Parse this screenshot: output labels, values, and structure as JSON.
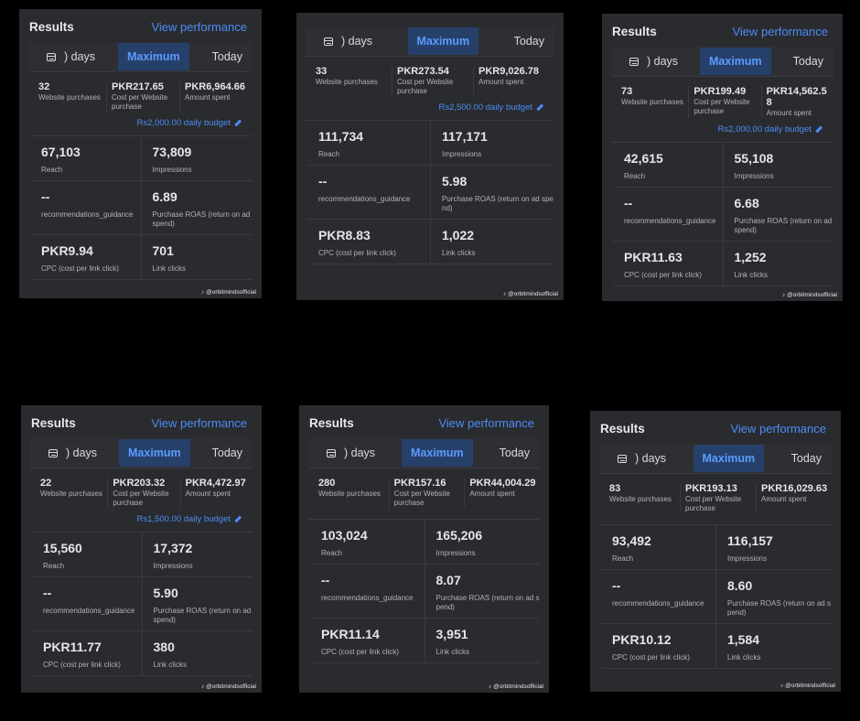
{
  "cards": [
    {
      "title": "Results",
      "view_label": "View performance",
      "tabs": {
        "days": ") days",
        "maximum": "Maximum",
        "today": "Today"
      },
      "summary": [
        {
          "value": "32",
          "label": "Website purchases"
        },
        {
          "value": "PKR217.65",
          "label": "Cost per Website purchase"
        },
        {
          "value": "PKR6,964.66",
          "label": "Amount spent"
        }
      ],
      "budget": "Rs2,000.00 daily budget",
      "metrics": [
        {
          "value": "67,103",
          "label": "Reach"
        },
        {
          "value": "73,809",
          "label": "Impressions"
        },
        {
          "value": "--",
          "label": "recommendations_guidance"
        },
        {
          "value": "6.89",
          "label": "Purchase ROAS (return on ad spend)"
        },
        {
          "value": "PKR9.94",
          "label": "CPC (cost per link click)"
        },
        {
          "value": "701",
          "label": "Link clicks"
        }
      ],
      "watermark": "@orbitmindsofficial"
    },
    {
      "title": "",
      "view_label": "",
      "tabs": {
        "days": ") days",
        "maximum": "Maximum",
        "today": "Today"
      },
      "summary": [
        {
          "value": "33",
          "label": "Website purchases"
        },
        {
          "value": "PKR273.54",
          "label": "Cost per Website purchase"
        },
        {
          "value": "PKR9,026.78",
          "label": "Amount spent"
        }
      ],
      "budget": "Rs2,500.00 daily budget",
      "metrics": [
        {
          "value": "111,734",
          "label": "Reach"
        },
        {
          "value": "117,171",
          "label": "Impressions"
        },
        {
          "value": "--",
          "label": "recommendations_guidance"
        },
        {
          "value": "5.98",
          "label": "Purchase ROAS (return on ad spend)"
        },
        {
          "value": "PKR8.83",
          "label": "CPC (cost per link click)"
        },
        {
          "value": "1,022",
          "label": "Link clicks"
        }
      ],
      "watermark": "@orbitmindsofficial"
    },
    {
      "title": "Results",
      "view_label": "View performance",
      "tabs": {
        "days": ") days",
        "maximum": "Maximum",
        "today": "Today"
      },
      "summary": [
        {
          "value": "73",
          "label": "Website purchases"
        },
        {
          "value": "PKR199.49",
          "label": "Cost per Website purchase"
        },
        {
          "value": "PKR14,562.58",
          "label": "Amount spent"
        }
      ],
      "budget": "Rs2,000.00 daily budget",
      "metrics": [
        {
          "value": "42,615",
          "label": "Reach"
        },
        {
          "value": "55,108",
          "label": "Impressions"
        },
        {
          "value": "--",
          "label": "recommendations_guidance"
        },
        {
          "value": "6.68",
          "label": "Purchase ROAS (return on ad spend)"
        },
        {
          "value": "PKR11.63",
          "label": "CPC (cost per link click)"
        },
        {
          "value": "1,252",
          "label": "Link clicks"
        }
      ],
      "watermark": "@orbitmindsofficial"
    },
    {
      "title": "Results",
      "view_label": "View performance",
      "tabs": {
        "days": ") days",
        "maximum": "Maximum",
        "today": "Today"
      },
      "summary": [
        {
          "value": "22",
          "label": "Website purchases"
        },
        {
          "value": "PKR203.32",
          "label": "Cost per Website purchase"
        },
        {
          "value": "PKR4,472.97",
          "label": "Amount spent"
        }
      ],
      "budget": "Rs1,500.00 daily budget",
      "metrics": [
        {
          "value": "15,560",
          "label": "Reach"
        },
        {
          "value": "17,372",
          "label": "Impressions"
        },
        {
          "value": "--",
          "label": "recommendations_guidance"
        },
        {
          "value": "5.90",
          "label": "Purchase ROAS (return on ad spend)"
        },
        {
          "value": "PKR11.77",
          "label": "CPC (cost per link click)"
        },
        {
          "value": "380",
          "label": "Link clicks"
        }
      ],
      "watermark": "@orbitmindsofficial"
    },
    {
      "title": "Results",
      "view_label": "View performance",
      "tabs": {
        "days": ") days",
        "maximum": "Maximum",
        "today": "Today"
      },
      "summary": [
        {
          "value": "280",
          "label": "Website purchases"
        },
        {
          "value": "PKR157.16",
          "label": "Cost per Website purchase"
        },
        {
          "value": "PKR44,004.29",
          "label": "Amount spent"
        }
      ],
      "budget": "",
      "metrics": [
        {
          "value": "103,024",
          "label": "Reach"
        },
        {
          "value": "165,206",
          "label": "Impressions"
        },
        {
          "value": "--",
          "label": "recommendations_guidance"
        },
        {
          "value": "8.07",
          "label": "Purchase ROAS (return on ad spend)"
        },
        {
          "value": "PKR11.14",
          "label": "CPC (cost per link click)"
        },
        {
          "value": "3,951",
          "label": "Link clicks"
        }
      ],
      "watermark": "@orbitmindsofficial"
    },
    {
      "title": "Results",
      "view_label": "View performance",
      "tabs": {
        "days": ") days",
        "maximum": "Maximum",
        "today": "Today"
      },
      "summary": [
        {
          "value": "83",
          "label": "Website purchases"
        },
        {
          "value": "PKR193.13",
          "label": "Cost per Website purchase"
        },
        {
          "value": "PKR16,029.63",
          "label": "Amount spent"
        }
      ],
      "budget": "",
      "metrics": [
        {
          "value": "93,492",
          "label": "Reach"
        },
        {
          "value": "116,157",
          "label": "Impressions"
        },
        {
          "value": "--",
          "label": "recommendations_guidance"
        },
        {
          "value": "8.60",
          "label": "Purchase ROAS (return on ad spend)"
        },
        {
          "value": "PKR10.12",
          "label": "CPC (cost per link click)"
        },
        {
          "value": "1,584",
          "label": "Link clicks"
        }
      ],
      "watermark": "@orbitmindsofficial"
    }
  ]
}
